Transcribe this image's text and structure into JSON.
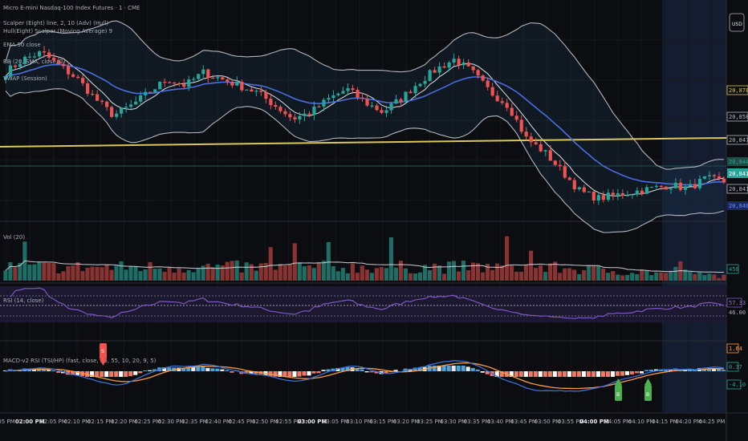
{
  "colors": {
    "background": "#0c0d10",
    "up": "#26a69a",
    "down": "#ef5350",
    "bollinger": "#b2b5be",
    "ema": "#4a6ee0",
    "vwap": "#d9c75a",
    "rsi": "#7e57c2",
    "session_highlight": "#16203a"
  },
  "header": {
    "currency_button": "USD"
  },
  "legend": {
    "title": "Micro E-mini Nasdaq-100 Index Futures · 1 · CME",
    "indicators": [
      "Scalper (Eight) line, 2, 10 (Adv) (Hull)",
      "Hull(Eight) Scalper (Moving Average) 9",
      "EMA 50 close",
      "BB (20, SMA, close, 2)",
      "VWAP (Session)"
    ],
    "volume": "Vol (20)",
    "rsi": "RSI (14, close)",
    "oscillator": "MACD-v2 RSI (TSI/HP) (fast, close, 55, 55, 10, 20, 9, 5)"
  },
  "price_axis_labels": [
    "20,878.00",
    "20,858.25",
    "20,847.25",
    "20,844.75",
    "20,841.25",
    "20,840.00"
  ],
  "volume_axis_label": "450",
  "rsi_axis_labels": [
    "57.33",
    "46.00"
  ],
  "osc_axis_labels": [
    "1.64",
    "0.37",
    "-4.10"
  ],
  "chart_data": [
    {
      "type": "candlestick",
      "title": "Micro E-mini Nasdaq-100 Index Futures · 1 · CME",
      "time_ticks": [
        "05 PM",
        "02:00 PM",
        "02:05 PM",
        "02:10 PM",
        "02:15 PM",
        "02:20 PM",
        "02:25 PM",
        "02:30 PM",
        "02:35 PM",
        "02:40 PM",
        "02:45 PM",
        "02:50 PM",
        "02:55 PM",
        "03:00 PM",
        "03:05 PM",
        "03:10 PM",
        "03:15 PM",
        "03:20 PM",
        "03:25 PM",
        "03:30 PM",
        "03:35 PM",
        "03:40 PM",
        "03:45 PM",
        "03:50 PM",
        "03:55 PM",
        "04:00 PM",
        "04:05 PM",
        "04:10 PM",
        "04:15 PM",
        "04:20 PM",
        "04:25 PM"
      ],
      "bold_ticks": [
        "02:00 PM",
        "03:00 PM",
        "04:00 PM"
      ],
      "close_anchors": [
        20868,
        20872,
        20874,
        20870,
        20866,
        20860,
        20855,
        20858,
        20862,
        20866,
        20864,
        20868,
        20866,
        20864,
        20862,
        20858,
        20854,
        20856,
        20860,
        20863,
        20859,
        20856,
        20860,
        20865,
        20869,
        20872,
        20868,
        20862,
        20858,
        20848,
        20844,
        20838,
        20832,
        20830,
        20831,
        20832,
        20833,
        20834,
        20833,
        20836,
        20835
      ],
      "ylim": [
        20825,
        20885
      ]
    },
    {
      "type": "bar",
      "title": "Vol (20)",
      "note": "volume histogram"
    },
    {
      "type": "line",
      "title": "RSI (14, close)",
      "ylim": [
        0,
        100
      ]
    }
  ],
  "markers": {
    "sell_signal": "S",
    "buy_signal_1": "B",
    "buy_signal_2": "B"
  }
}
